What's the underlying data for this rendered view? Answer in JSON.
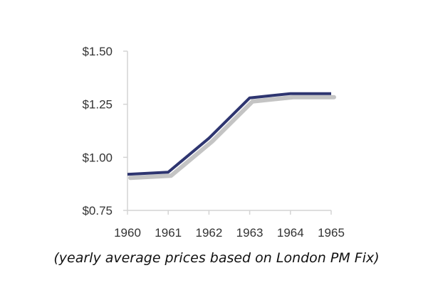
{
  "chart_data": {
    "type": "line",
    "title": "",
    "xlabel": "",
    "ylabel": "",
    "x": [
      1960,
      1961,
      1962,
      1963,
      1964,
      1965
    ],
    "x_tick_labels": [
      "1960",
      "1961",
      "1962",
      "1963",
      "1964",
      "1965"
    ],
    "series": [
      {
        "values": [
          0.92,
          0.93,
          1.09,
          1.28,
          1.3,
          1.3
        ]
      }
    ],
    "ylim": [
      0.75,
      1.5
    ],
    "y_ticks": [
      0.75,
      1.0,
      1.25,
      1.5
    ],
    "y_tick_labels": [
      "$0.75",
      "$1.00",
      "$1.25",
      "$1.50"
    ],
    "grid": false,
    "legend": "none",
    "line_color": "#2e3570",
    "shadow_color": "#b5b5b5",
    "axis_color": "#d4d4d4"
  },
  "caption": "(yearly average prices based on London PM Fix)"
}
